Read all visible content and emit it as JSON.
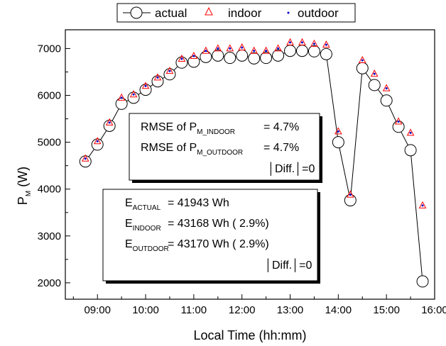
{
  "chart_data": {
    "type": "scatter",
    "title": "",
    "xlabel": "Local Time (hh:mm)",
    "ylabel_main": "P",
    "ylabel_sub": "M",
    "ylabel_unit": " (W)",
    "x_ticks": [
      "09:00",
      "10:00",
      "11:00",
      "12:00",
      "13:00",
      "14:00",
      "15:00",
      "16:00"
    ],
    "y_ticks": [
      "2000",
      "3000",
      "4000",
      "5000",
      "6000",
      "7000"
    ],
    "xlim": [
      "08:20",
      "16:00"
    ],
    "ylim": [
      1650,
      7400
    ],
    "grid": false,
    "legend_position": "top",
    "x": [
      "08:45",
      "09:00",
      "09:15",
      "09:30",
      "09:45",
      "10:00",
      "10:15",
      "10:30",
      "10:45",
      "11:00",
      "11:15",
      "11:30",
      "11:45",
      "12:00",
      "12:15",
      "12:30",
      "12:45",
      "13:00",
      "13:15",
      "13:30",
      "13:45",
      "14:00",
      "14:15",
      "14:30",
      "14:45",
      "15:00",
      "15:15",
      "15:30",
      "15:45"
    ],
    "series": [
      {
        "name": "actual",
        "marker": "circle",
        "line": true,
        "color": "#000000",
        "values": [
          4590,
          4950,
          5350,
          5820,
          5950,
          6120,
          6300,
          6450,
          6700,
          6720,
          6820,
          6850,
          6800,
          6850,
          6790,
          6800,
          6850,
          6950,
          6950,
          6940,
          6880,
          5000,
          3760,
          6580,
          6220,
          5890,
          5330,
          4830,
          2030
        ]
      },
      {
        "name": "indoor",
        "marker": "triangle",
        "line": false,
        "color": "#ff0000",
        "values": [
          4650,
          5020,
          5420,
          5950,
          6020,
          6200,
          6380,
          6520,
          6780,
          6840,
          6950,
          7000,
          7000,
          7020,
          6950,
          6950,
          7000,
          7130,
          7130,
          7100,
          7080,
          5230,
          3880,
          6750,
          6460,
          6150,
          5440,
          5200,
          3650
        ]
      },
      {
        "name": "outdoor",
        "marker": "dot",
        "line": false,
        "color": "#0000cc",
        "values": [
          4650,
          5020,
          5420,
          5950,
          6020,
          6200,
          6380,
          6520,
          6780,
          6840,
          6950,
          7000,
          7000,
          7020,
          6950,
          6950,
          7000,
          7130,
          7130,
          7100,
          7080,
          5230,
          3880,
          6750,
          6460,
          6150,
          5440,
          5200,
          3650
        ]
      }
    ],
    "annotation_rmse": {
      "line1_prefix": "RMSE of P",
      "line1_sub": "M_INDOOR",
      "line1_value": "= 4.7%",
      "line2_prefix": "RMSE of P",
      "line2_sub": "M_OUTDOOR",
      "line2_value": "= 4.7%",
      "line3": "│Diff.│=0"
    },
    "annotation_energy": {
      "line1_prefix": "E",
      "line1_sub": "ACTUAL",
      "line1_value": "= 41943 Wh",
      "line2_prefix": "E",
      "line2_sub": "INDOOR",
      "line2_value": "= 43168 Wh  ( 2.9%)",
      "line3_prefix": "E",
      "line3_sub": "OUTDOOR",
      "line3_value": "= 43170 Wh  ( 2.9%)",
      "line4": "│Diff.│=0"
    }
  }
}
